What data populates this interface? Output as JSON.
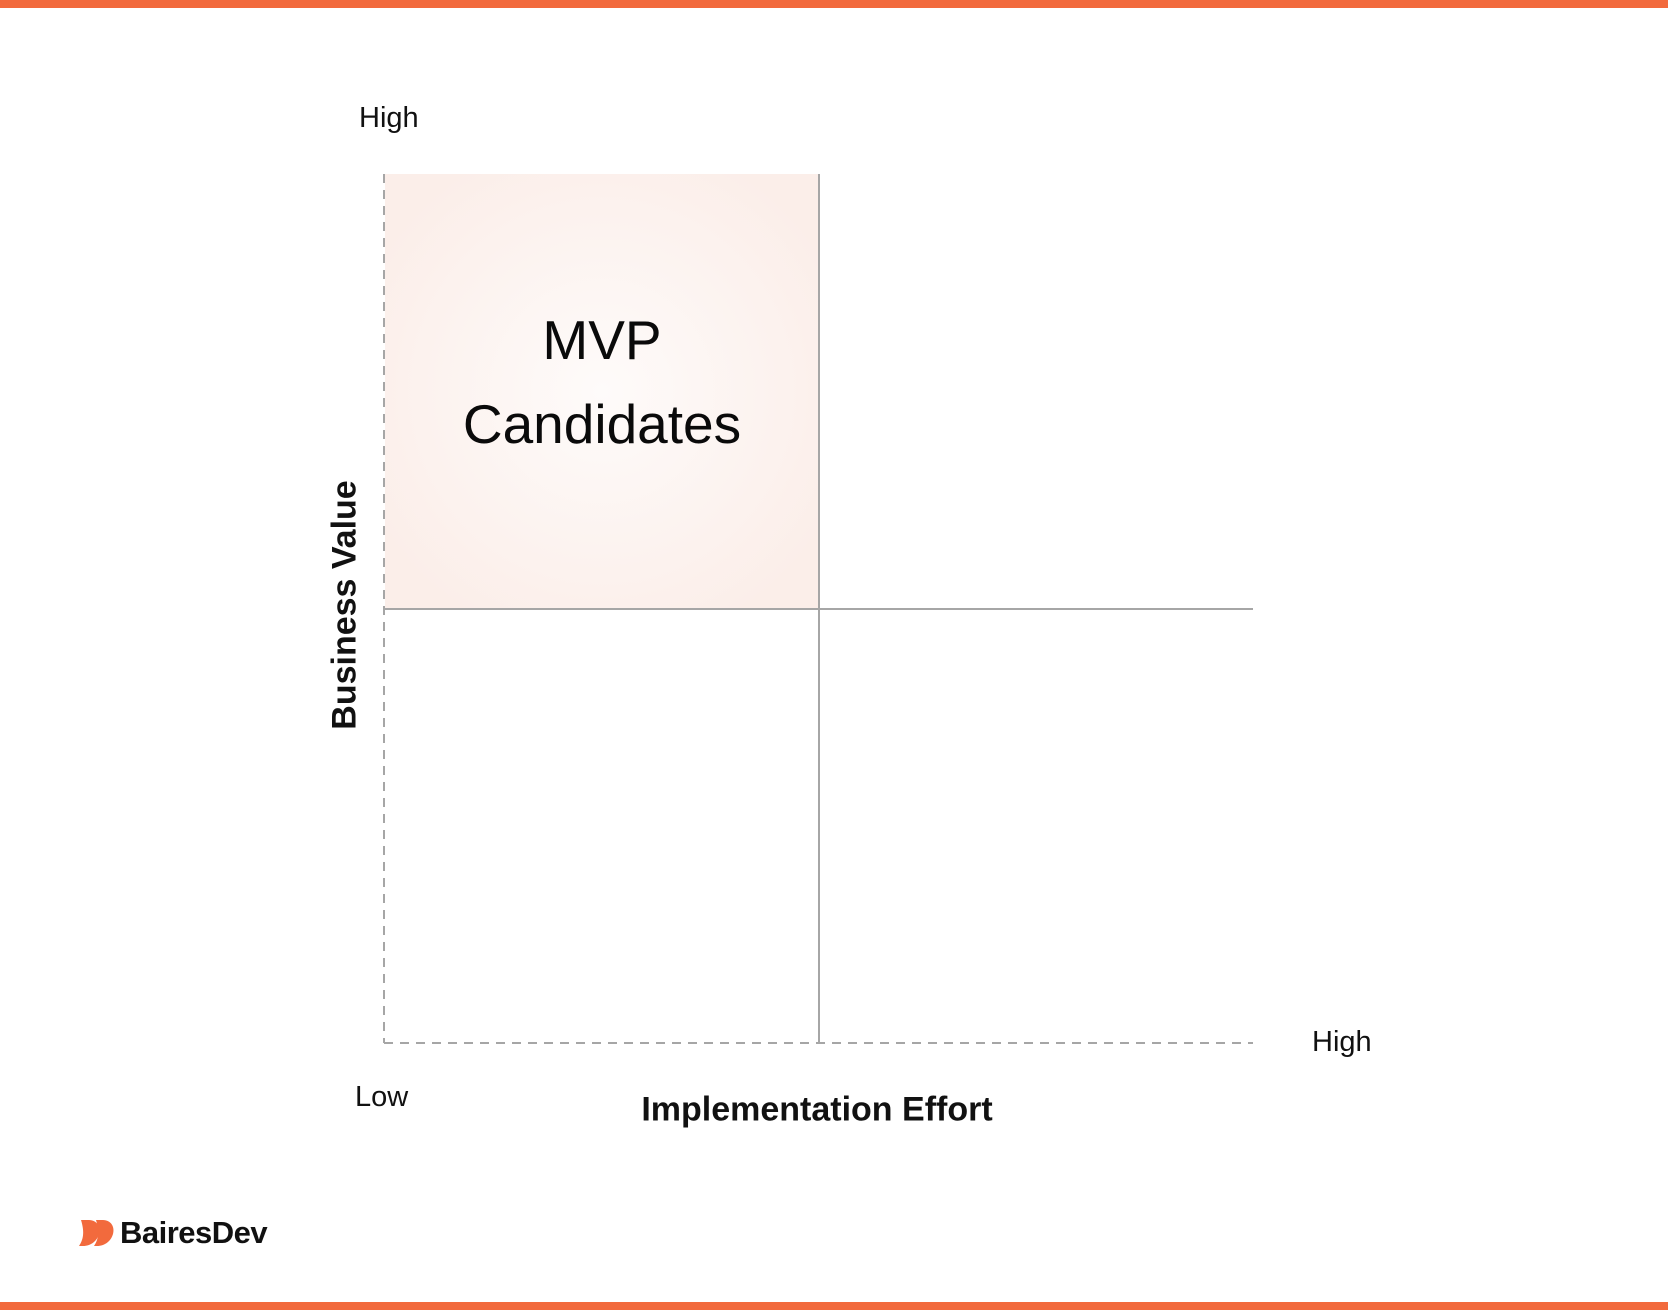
{
  "colors": {
    "accent": "#F26A3D",
    "quadrant_highlight": "#FBEEEA",
    "axis_line": "#A6A6A6",
    "text": "#111111"
  },
  "diagram": {
    "y_axis": {
      "title": "Business Value",
      "high_label": "High"
    },
    "x_axis": {
      "title": "Implementation Effort",
      "high_label": "High",
      "low_label": "Low"
    },
    "highlighted_quadrant": {
      "position": "top-left",
      "title_line1": "MVP",
      "title_line2": "Candidates"
    }
  },
  "brand": {
    "name": "BairesDev",
    "logo_icon": "bairesdev-logo-icon"
  }
}
